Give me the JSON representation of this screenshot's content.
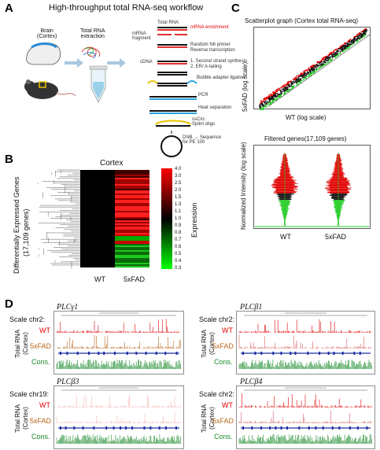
{
  "panel_a": {
    "label": "A",
    "title": "High-throughput total RNA-seq workflow",
    "brain_label_line1": "Brain",
    "brain_label_line2": "(Cortex)",
    "extraction_line1": "Total RNA",
    "extraction_line2": "extraction",
    "steps": {
      "total_rna": "Total RNA",
      "mrna_enrich": "mRNA enrichment",
      "mrna_fragment_1": "mRNA",
      "mrna_fragment_2": "fragment",
      "random_primer": "Random N6 primer",
      "reverse": "Reverse transcription",
      "cdna": "cDNA",
      "second_strand": "1. Second strand synthesis",
      "er_tailing": "2. ER/ A-tailing",
      "bubble": "Bubble adapter ligation",
      "pcr": "PCR",
      "heat": "Heat separation",
      "sscirc_1": "ssCirc",
      "sscirc_2": "Splint oligo",
      "dnb_1": "DNB → Sequence",
      "dnb_2": "for PE 100"
    }
  },
  "panel_b": {
    "label": "B",
    "title": "Cortex",
    "ylabel_1": "Differentially Expressed Genes",
    "ylabel_2": "(17,109 genes)",
    "col_wt": "WT",
    "col_5xfad": "5xFAD",
    "legend_title": "Expression",
    "legend_ticks": [
      "4.0",
      "3.0",
      "2.5",
      "2.0",
      "1.5",
      "1.3",
      "1.1",
      "1.0",
      "0.9",
      "0.8",
      "0.7",
      "0.6",
      "0.5",
      "0.4",
      "0.3"
    ]
  },
  "panel_c": {
    "label": "C",
    "scatter_title": "Scatterplot graph (Cortex total RNA-seq)",
    "scatter_ylabel": "5xFAD (log scale)",
    "scatter_xlabel": "WT (log scale)",
    "filtered_title": "Filtered genes(17,109 genes)",
    "filtered_ylabel": "Normalized Intensity (log scale)",
    "col_wt": "WT",
    "col_5xfad": "5xFAD"
  },
  "panel_d": {
    "label": "D",
    "tracks": [
      {
        "gene": "PLCγ1",
        "scale": "Scale chr2:",
        "wt": "WT",
        "fad": "5xFAD",
        "cons": "Cons.",
        "side": "Total RNA",
        "side2": "(Cortex)"
      },
      {
        "gene": "PLCβ1",
        "scale": "Scale chr2:",
        "wt": "WT",
        "fad": "5xFAD",
        "cons": "Cons.",
        "side": "Total RNA",
        "side2": "(Cortex)"
      },
      {
        "gene": "PLCβ3",
        "scale": "Scale chr19:",
        "wt": "WT",
        "fad": "5xFAD",
        "cons": "Cons.",
        "side": "Total RNA",
        "side2": "(Cortex)"
      },
      {
        "gene": "PLCβ4",
        "scale": "Scale chr2:",
        "wt": "WT",
        "fad": "5xFAD",
        "cons": "Cons.",
        "side": "Total RNA",
        "side2": "(Cortex)"
      }
    ]
  },
  "colors": {
    "red": "#e00000",
    "green": "#22cc22",
    "orange": "#b8661a",
    "blue_strand": "#1f2f9f",
    "cons_green": "#1a8a2a"
  }
}
